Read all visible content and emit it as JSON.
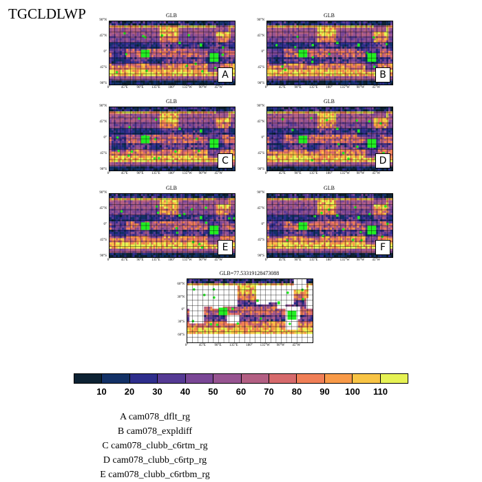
{
  "title": "TGCLDLWP",
  "panels": [
    {
      "id": "A",
      "title": "GLB",
      "letter": "A"
    },
    {
      "id": "B",
      "title": "GLB",
      "letter": "B"
    },
    {
      "id": "C",
      "title": "GLB",
      "letter": "C"
    },
    {
      "id": "D",
      "title": "GLB",
      "letter": "D"
    },
    {
      "id": "E",
      "title": "GLB",
      "letter": "E"
    },
    {
      "id": "F",
      "title": "GLB",
      "letter": "F"
    },
    {
      "id": "OBS",
      "title": "GLB=77.53319128473088",
      "letter": ""
    }
  ],
  "lat_labels": [
    "90°N",
    "45°N",
    "0°",
    "45°S",
    "90°S"
  ],
  "lat_labels_obs": [
    "60°N",
    "30°N",
    "0°",
    "30°S",
    "60°S"
  ],
  "lon_labels": [
    "0°",
    "45°E",
    "90°E",
    "135°E",
    "180°",
    "135°W",
    "90°W",
    "45°W"
  ],
  "colorbar": {
    "colors": [
      "#0d2233",
      "#133166",
      "#2e2e8c",
      "#553a94",
      "#7a4796",
      "#975491",
      "#b35f83",
      "#d66a6c",
      "#f07f57",
      "#f89a48",
      "#f8c445",
      "#e6f254"
    ],
    "labels": [
      "10",
      "20",
      "30",
      "40",
      "50",
      "60",
      "70",
      "80",
      "90",
      "100",
      "110"
    ]
  },
  "legend": [
    "A  cam078_dflt_rg",
    "B  cam078_expldiff",
    "C  cam078_clubb_c6rtm_rg",
    "D  cam078_clubb_c6rtp_rg",
    "E  cam078_clubb_c6rtbm_rg"
  ]
}
